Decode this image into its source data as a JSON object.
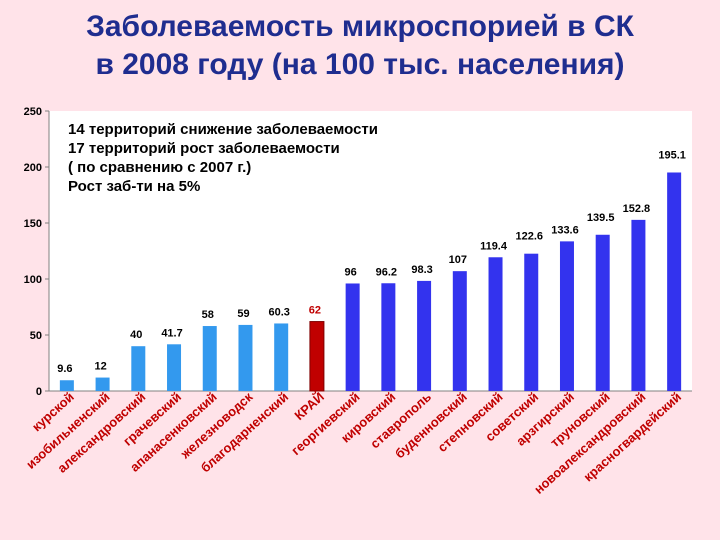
{
  "title": {
    "line1": "Заболеваемость микроспорией в СК",
    "line2": "в 2008 году (на 100 тыс. населения)"
  },
  "annotation": [
    "14 территорий снижение заболеваемости",
    "17 территорий рост заболеваемости",
    "( по сравнению с 2007 г.)",
    "Рост заб-ти на 5%"
  ],
  "colors": {
    "decrease": "#3399ee",
    "region": "#c00000",
    "increase": "#3333ee",
    "background": "#ffe3e9",
    "plot_background": "#ffffff",
    "category_text": "#c00000"
  },
  "chart_data": {
    "type": "bar",
    "title": "Заболеваемость микроспорией в СК в 2008 году (на 100 тыс. населения)",
    "xlabel": "",
    "ylabel": "",
    "ylim": [
      0,
      250
    ],
    "yticks": [
      0,
      50,
      100,
      150,
      200,
      250
    ],
    "grid": false,
    "legend": "none",
    "categories": [
      "курской",
      "изобильненский",
      "александровский",
      "грачевский",
      "апанасенковский",
      "железноводск",
      "благодарненский",
      "КРАЙ",
      "георгиевский",
      "кировский",
      "ставрополь",
      "буденновский",
      "степновский",
      "советский",
      "арзгирский",
      "труновский",
      "новоалександровский",
      "красногвардейский"
    ],
    "values": [
      9.6,
      12,
      40,
      41.7,
      58,
      59,
      60.3,
      62,
      96,
      96.2,
      98.3,
      107,
      119.4,
      122.6,
      133.6,
      139.5,
      152.8,
      195.1
    ],
    "labels": [
      "9.6",
      "12",
      "40",
      "41.7",
      "58",
      "59",
      "60.3",
      "62",
      "96",
      "96.2",
      "98.3",
      "107",
      "119.4",
      "122.6",
      "133.6",
      "139.5",
      "152.8",
      "195.1"
    ],
    "groups": [
      "decrease",
      "decrease",
      "decrease",
      "decrease",
      "decrease",
      "decrease",
      "decrease",
      "region",
      "increase",
      "increase",
      "increase",
      "increase",
      "increase",
      "increase",
      "increase",
      "increase",
      "increase",
      "increase"
    ]
  }
}
